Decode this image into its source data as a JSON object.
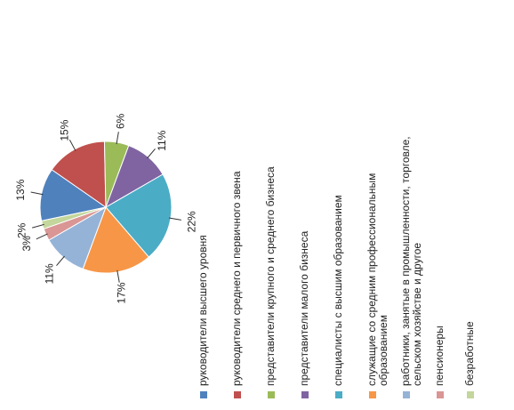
{
  "chart_data": {
    "type": "pie",
    "title": "",
    "categories": [
      "руководители высшего уровня",
      "руководители среднего и первичного звена",
      "представители крупного и среднего бизнеса",
      "представители малого бизнеса",
      "специалисты с высшим образованием",
      "служащие со средним профессиональным образованием",
      "работники, занятые в промышленности, торговле, сельском хозяйстве и другое",
      "пенсионеры",
      "безработные"
    ],
    "values": [
      13,
      15,
      6,
      11,
      22,
      17,
      11,
      3,
      2
    ],
    "data_labels": [
      "13%",
      "15%",
      "6%",
      "11%",
      "22%",
      "17%",
      "11%",
      "3%",
      "2%"
    ],
    "colors": [
      "#4F81BD",
      "#C0504D",
      "#9BBB59",
      "#8064A2",
      "#4BACC6",
      "#F79646",
      "#95B3D7",
      "#D99694",
      "#C3D69B"
    ],
    "legend_position": "right"
  }
}
